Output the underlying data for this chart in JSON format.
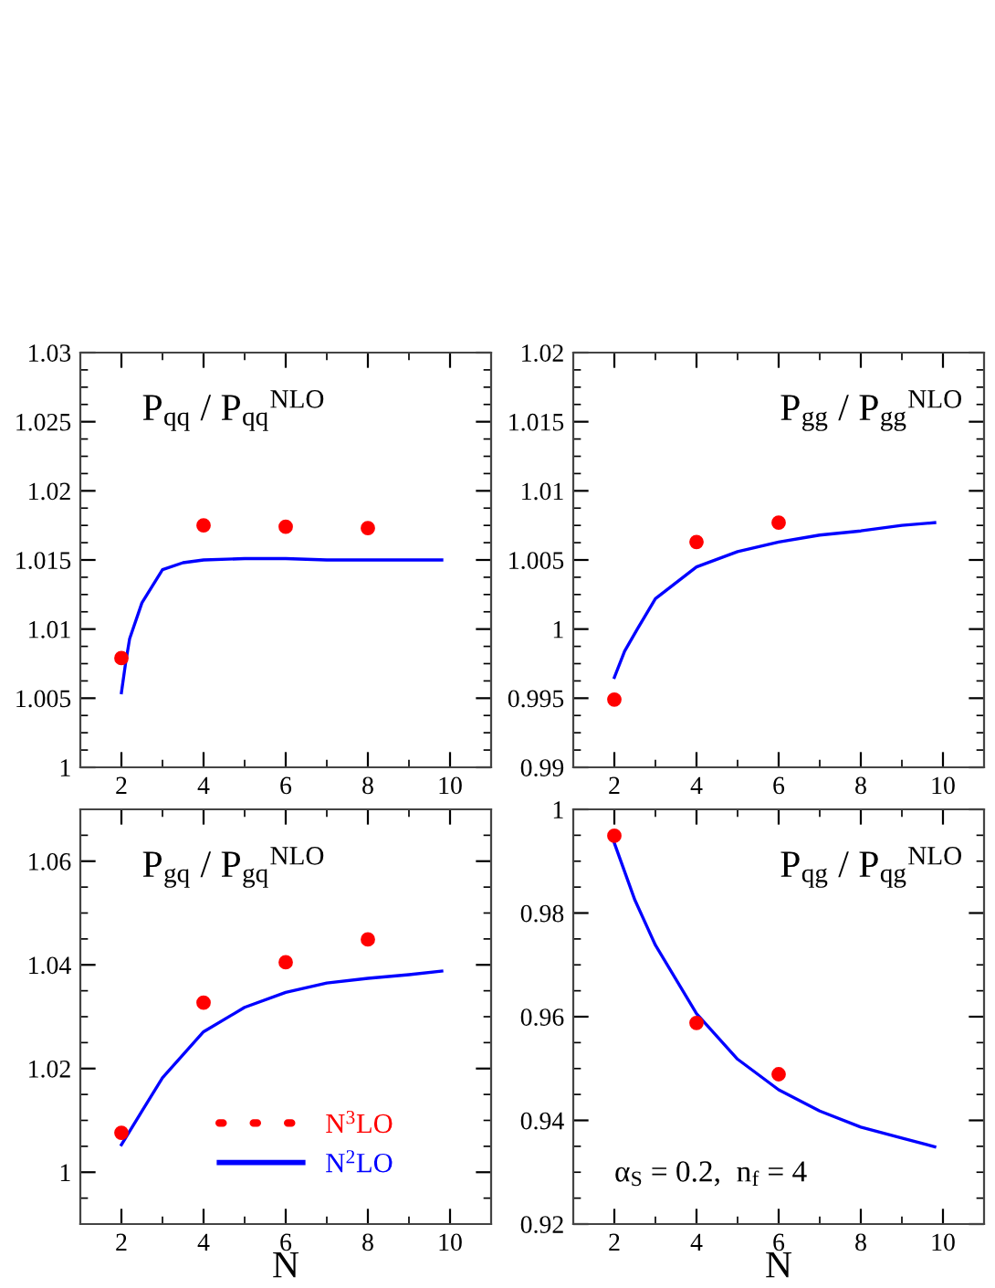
{
  "chart_data": [
    {
      "type": "line",
      "title": "P$_{qq}$ / P$_{qq}$$^{NLO}$",
      "xlim": [
        1,
        11
      ],
      "xticks": [
        2,
        4,
        6,
        8,
        10
      ],
      "ylim": [
        1,
        1.03
      ],
      "yticks": [
        1,
        1.005,
        1.01,
        1.015,
        1.02,
        1.025,
        1.03
      ],
      "series": [
        {
          "type": "scatter",
          "color": "#ff0000",
          "marker": "circle",
          "x": [
            2,
            4,
            6,
            8
          ],
          "values": [
            1.0079,
            1.0175,
            1.0174,
            1.0173
          ]
        },
        {
          "color": "#0000ff",
          "line_style": "solid",
          "x": [
            2,
            2.1,
            2.2,
            2.5,
            3,
            3.5,
            4,
            5,
            6,
            7,
            8,
            9,
            9.8
          ],
          "values": [
            1.0054,
            1.0075,
            1.0093,
            1.0119,
            1.0143,
            1.0148,
            1.015,
            1.0151,
            1.0151,
            1.015,
            1.015,
            1.015,
            1.015
          ]
        }
      ]
    },
    {
      "type": "line",
      "title": "P$_{gg}$ / P$_{gg}$$^{NLO}$",
      "xlim": [
        1,
        11
      ],
      "xticks": [
        2,
        4,
        6,
        8,
        10
      ],
      "ylim": [
        0.99,
        1.02
      ],
      "yticks": [
        0.99,
        0.995,
        1,
        1.005,
        1.01,
        1.015,
        1.02
      ],
      "series": [
        {
          "type": "scatter",
          "color": "#ff0000",
          "marker": "circle",
          "x": [
            2,
            4,
            6
          ],
          "values": [
            0.9949,
            1.0063,
            1.0077
          ]
        },
        {
          "color": "#0000ff",
          "line_style": "solid",
          "x": [
            2,
            2.25,
            2.56,
            3,
            4,
            5,
            6,
            7,
            8,
            9,
            9.8
          ],
          "values": [
            0.9965,
            0.9984,
            1.0,
            1.0022,
            1.0045,
            1.0056,
            1.0063,
            1.0068,
            1.0071,
            1.0075,
            1.0077
          ]
        }
      ]
    },
    {
      "type": "line",
      "title": "P$_{gq}$ / P$_{gq}$$^{NLO}$",
      "xlabel": "N",
      "xlim": [
        1,
        11
      ],
      "xticks": [
        2,
        4,
        6,
        8,
        10
      ],
      "ylim": [
        0.99,
        1.07
      ],
      "yticks": [
        1,
        1.02,
        1.04,
        1.06
      ],
      "legend": "bottom",
      "series": [
        {
          "type": "scatter",
          "name": "N$^{3}$LO",
          "color": "#ff0000",
          "marker": "circle",
          "x": [
            2,
            4,
            6,
            8
          ],
          "values": [
            1.0076,
            1.0327,
            1.0405,
            1.0449
          ]
        },
        {
          "name": "N$^{2}$LO",
          "color": "#0000ff",
          "line_style": "solid",
          "x": [
            2,
            2.5,
            3,
            4,
            5,
            6,
            7,
            8,
            9,
            9.8
          ],
          "values": [
            1.0053,
            1.0118,
            1.0182,
            1.0271,
            1.0318,
            1.0347,
            1.0365,
            1.0374,
            1.0381,
            1.0388
          ]
        }
      ]
    },
    {
      "type": "line",
      "title": "P$_{qg}$ / P$_{qg}$$^{NLO}$",
      "xlabel": "N",
      "xlim": [
        1,
        11
      ],
      "xticks": [
        2,
        4,
        6,
        8,
        10
      ],
      "ylim": [
        0.92,
        1
      ],
      "yticks": [
        0.92,
        0.94,
        0.96,
        0.98,
        1
      ],
      "annotations": [
        "α$_{S}$ = 0.2,  n$_{f}$ = 4"
      ],
      "series": [
        {
          "type": "scatter",
          "color": "#ff0000",
          "marker": "circle",
          "x": [
            2,
            4,
            6
          ],
          "values": [
            0.9949,
            0.9588,
            0.9489
          ]
        },
        {
          "color": "#0000ff",
          "line_style": "solid",
          "x": [
            2,
            2.5,
            3,
            4,
            5,
            6,
            7,
            8,
            9,
            9.8
          ],
          "values": [
            0.9935,
            0.9825,
            0.9738,
            0.9606,
            0.9518,
            0.9459,
            0.9418,
            0.9387,
            0.9366,
            0.9349
          ]
        }
      ]
    }
  ]
}
